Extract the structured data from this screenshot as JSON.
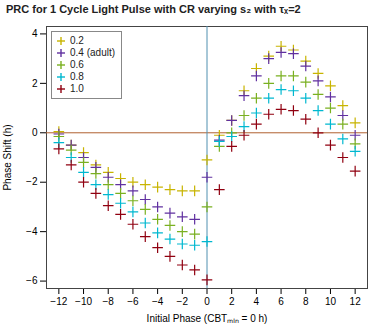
{
  "chart_data": {
    "type": "scatter",
    "title": "PRC for 1 Cycle Light Pulse with CR varying s₂ with τₓ=2",
    "xlabel": "Initial Phase (CBTₘᵢₙ = 0 h)",
    "ylabel": "Phase Shift (h)",
    "xlim": [
      -13,
      13
    ],
    "ylim": [
      -6.3,
      4.3
    ],
    "xticks": [
      -12,
      -10,
      -8,
      -6,
      -4,
      -2,
      0,
      2,
      4,
      6,
      8,
      10,
      12
    ],
    "yticks": [
      -6,
      -4,
      -2,
      0,
      2,
      4
    ],
    "marker": "plus",
    "legend": "upper left",
    "hline": {
      "value": 0,
      "color": "#b06030"
    },
    "vline": {
      "value": 0,
      "color": "#5090b0"
    },
    "series": [
      {
        "name": "0.2",
        "color": "#c8b400",
        "x": [
          -12,
          -11,
          -10,
          -9,
          -8,
          -7,
          -6,
          -5,
          -4,
          -3,
          -2,
          -1,
          0,
          1,
          2,
          3,
          4,
          5,
          6,
          7,
          8,
          9,
          10,
          11,
          12
        ],
        "values": [
          0.05,
          -0.5,
          -0.8,
          -1.3,
          -1.6,
          -1.85,
          -2.0,
          -2.1,
          -2.2,
          -2.3,
          -2.35,
          -2.35,
          -1.1,
          -0.1,
          0.5,
          1.7,
          2.6,
          3.1,
          3.5,
          3.35,
          2.9,
          2.4,
          1.9,
          1.1,
          0.4
        ]
      },
      {
        "name": "0.4 (adult)",
        "color": "#6030a0",
        "x": [
          -12,
          -11,
          -10,
          -9,
          -8,
          -7,
          -6,
          -5,
          -4,
          -3,
          -2,
          -1,
          0,
          1,
          2,
          3,
          4,
          5,
          6,
          7,
          8,
          9,
          10,
          11,
          12
        ],
        "values": [
          -0.05,
          -0.5,
          -1.0,
          -1.4,
          -1.8,
          -2.1,
          -2.35,
          -2.7,
          -3.0,
          -3.25,
          -3.4,
          -3.5,
          -1.8,
          -0.3,
          0.5,
          1.5,
          2.3,
          3.0,
          3.25,
          3.2,
          2.7,
          2.1,
          1.45,
          0.7,
          -0.1
        ]
      },
      {
        "name": "0.6",
        "color": "#7ab020",
        "x": [
          -12,
          -11,
          -10,
          -9,
          -8,
          -7,
          -6,
          -5,
          -4,
          -3,
          -2,
          -1,
          0,
          1,
          2,
          3,
          4,
          5,
          6,
          7,
          8,
          9,
          10,
          11,
          12
        ],
        "values": [
          -0.15,
          -0.7,
          -1.2,
          -1.65,
          -2.1,
          -2.45,
          -2.75,
          -3.1,
          -3.5,
          -3.75,
          -4.0,
          -4.1,
          -3.0,
          -0.55,
          0.0,
          0.7,
          1.4,
          2.0,
          2.3,
          2.3,
          2.05,
          1.55,
          1.0,
          0.35,
          -0.45
        ]
      },
      {
        "name": "0.8",
        "color": "#00b8d0",
        "x": [
          -12,
          -11,
          -10,
          -9,
          -8,
          -7,
          -6,
          -5,
          -4,
          -3,
          -2,
          -1,
          0,
          1,
          2,
          3,
          4,
          5,
          6,
          7,
          8,
          9,
          10,
          11,
          12
        ],
        "values": [
          -0.4,
          -1.0,
          -1.6,
          -2.1,
          -2.5,
          -2.85,
          -3.2,
          -3.65,
          -4.05,
          -4.3,
          -4.5,
          -4.55,
          -4.4,
          -0.35,
          -0.15,
          0.25,
          0.8,
          1.4,
          1.75,
          1.7,
          1.4,
          0.9,
          0.35,
          -0.25,
          -0.75
        ]
      },
      {
        "name": "1.0",
        "color": "#900010",
        "x": [
          -12,
          -11,
          -10,
          -9,
          -8,
          -7,
          -6,
          -5,
          -4,
          -3,
          -2,
          -1,
          0,
          1,
          2,
          3,
          4,
          5,
          6,
          7,
          8,
          9,
          10,
          11,
          12
        ],
        "values": [
          -0.65,
          -1.3,
          -2.0,
          -2.45,
          -2.95,
          -3.3,
          -3.7,
          -4.2,
          -4.65,
          -5.0,
          -5.35,
          -5.55,
          -5.95,
          -2.3,
          -0.55,
          -0.1,
          0.35,
          0.75,
          0.95,
          0.9,
          0.55,
          0.0,
          -0.5,
          -1.0,
          -1.55
        ]
      }
    ]
  }
}
